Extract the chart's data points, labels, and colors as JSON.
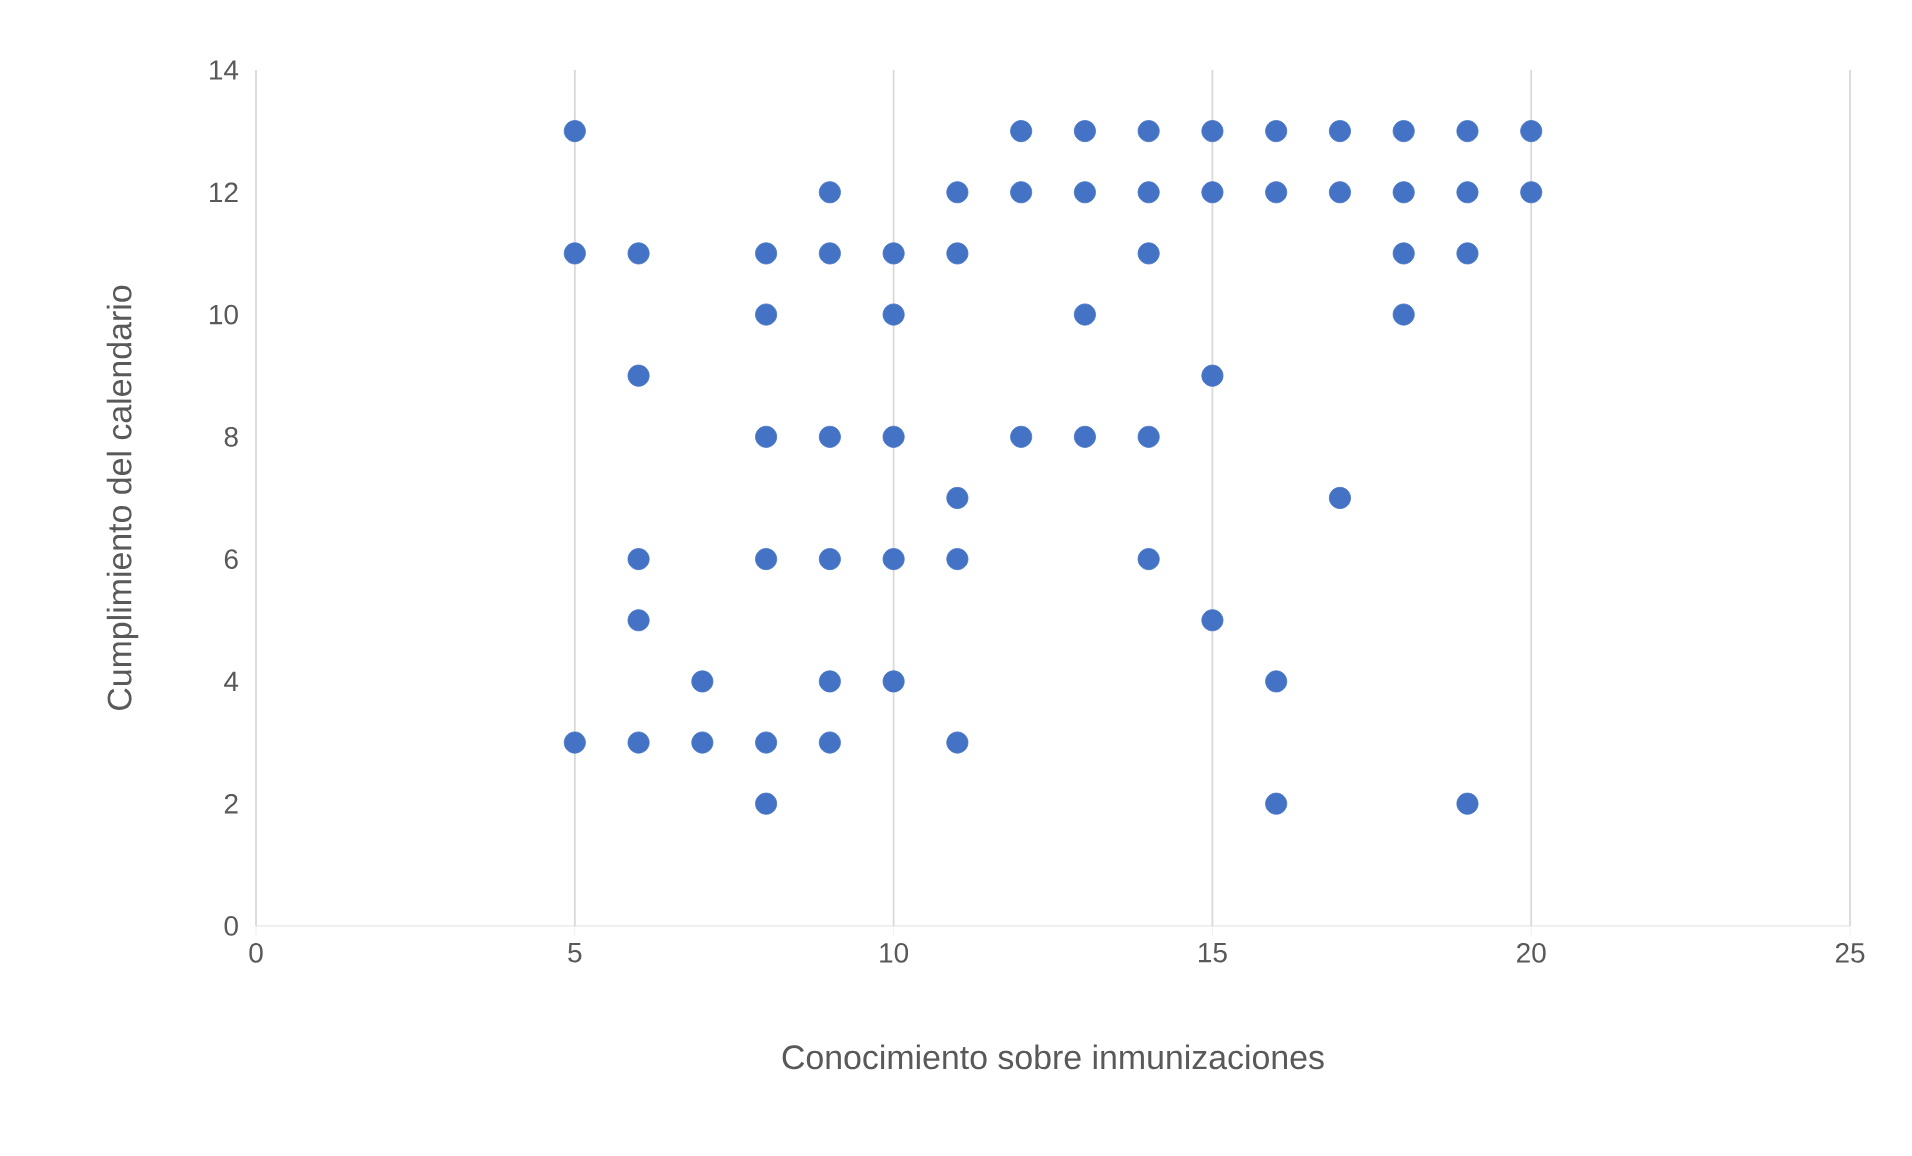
{
  "chart_data": {
    "type": "scatter",
    "xlabel": "Conocimiento sobre inmunizaciones",
    "ylabel": "Cumplimiento del calendario",
    "x": [
      5,
      5,
      5,
      6,
      6,
      6,
      6,
      6,
      7,
      7,
      8,
      8,
      8,
      8,
      8,
      8,
      9,
      9,
      9,
      9,
      9,
      9,
      10,
      10,
      10,
      10,
      10,
      11,
      11,
      11,
      11,
      11,
      12,
      12,
      12,
      13,
      13,
      13,
      13,
      14,
      14,
      14,
      14,
      14,
      15,
      15,
      15,
      15,
      16,
      16,
      16,
      16,
      17,
      17,
      17,
      18,
      18,
      18,
      18,
      19,
      19,
      19,
      19,
      20,
      20
    ],
    "values": [
      13,
      11,
      3,
      11,
      9,
      6,
      5,
      3,
      4,
      3,
      11,
      10,
      8,
      6,
      3,
      2,
      12,
      11,
      8,
      6,
      4,
      3,
      11,
      10,
      8,
      6,
      4,
      12,
      11,
      7,
      6,
      3,
      13,
      12,
      8,
      13,
      12,
      10,
      8,
      13,
      12,
      11,
      8,
      6,
      13,
      12,
      9,
      5,
      13,
      12,
      4,
      2,
      13,
      12,
      7,
      13,
      12,
      11,
      10,
      13,
      12,
      11,
      2,
      13,
      12
    ],
    "color": "#4472c4",
    "marker": "circle",
    "grid": "x",
    "xlim": [
      0,
      25
    ],
    "ylim": [
      0,
      14
    ],
    "xticks": [
      0,
      5,
      10,
      15,
      20,
      25
    ],
    "yticks": [
      0,
      2,
      4,
      6,
      8,
      10,
      12,
      14
    ]
  }
}
